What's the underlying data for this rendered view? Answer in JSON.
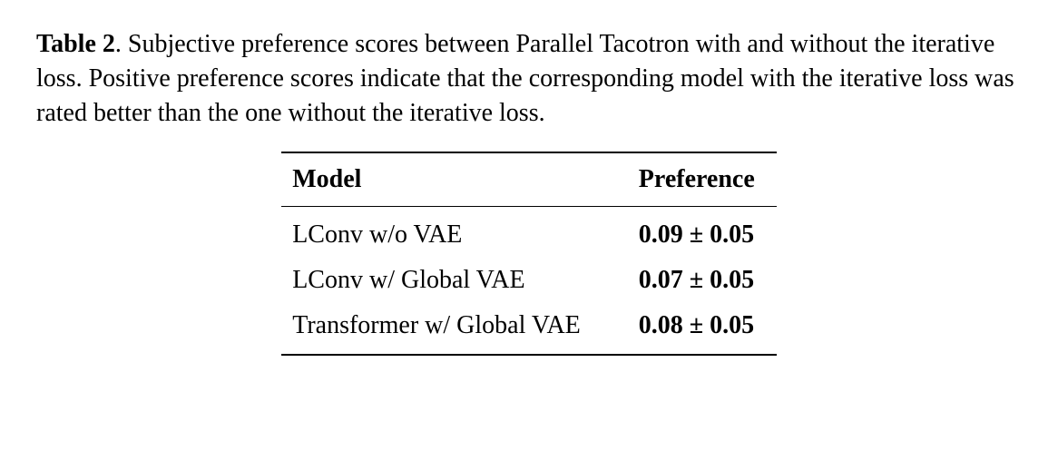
{
  "caption": {
    "label": "Table 2",
    "text": ". Subjective preference scores between Parallel Tacotron with and without the iterative loss. Positive preference scores indicate that the corresponding model with the iterative loss was rated better than the one without the iterative loss."
  },
  "table": {
    "type": "table",
    "columns": [
      "Model",
      "Preference"
    ],
    "rows": [
      [
        "LConv w/o VAE",
        "0.09 ± 0.05"
      ],
      [
        "LConv w/ Global VAE",
        "0.07 ± 0.05"
      ],
      [
        "Transformer w/ Global VAE",
        "0.08 ± 0.05"
      ]
    ],
    "header_fontweight": "bold",
    "preference_fontweight": "bold",
    "rule_color": "#000000",
    "background_color": "#ffffff",
    "font_family": "Times New Roman",
    "font_size_pt": 21
  }
}
